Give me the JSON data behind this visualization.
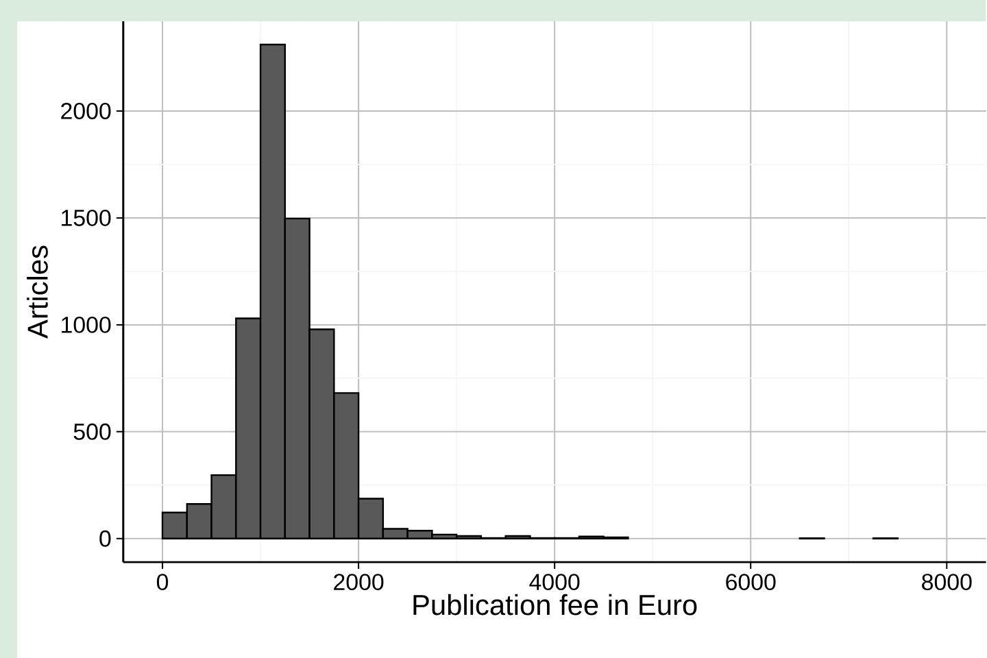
{
  "chart_data": {
    "type": "histogram",
    "xlabel": "Publication fee in Euro",
    "ylabel": "Articles",
    "bins": [
      0,
      250,
      500,
      750,
      1000,
      1250,
      1500,
      1750,
      2000,
      2250,
      2500,
      2750,
      3000,
      3250,
      3500,
      3750,
      4000,
      4250,
      4500,
      4750,
      5000,
      5250,
      5500,
      5750,
      6000,
      6250,
      6500,
      6750,
      7000,
      7250,
      7500,
      7750,
      8000
    ],
    "values": [
      122,
      162,
      297,
      1030,
      2311,
      1497,
      979,
      681,
      187,
      46,
      37,
      19,
      12,
      3,
      12,
      3,
      3,
      10,
      6,
      0,
      0,
      0,
      0,
      0,
      0,
      0,
      2,
      0,
      0,
      2,
      0,
      0
    ],
    "color": "#595959",
    "xlim": [
      -400,
      8400
    ],
    "ylim": [
      -110,
      2420
    ],
    "xticks": [
      0,
      2000,
      4000,
      6000,
      8000
    ],
    "yticks": [
      0,
      500,
      1000,
      1500,
      2000
    ],
    "grid": true
  }
}
